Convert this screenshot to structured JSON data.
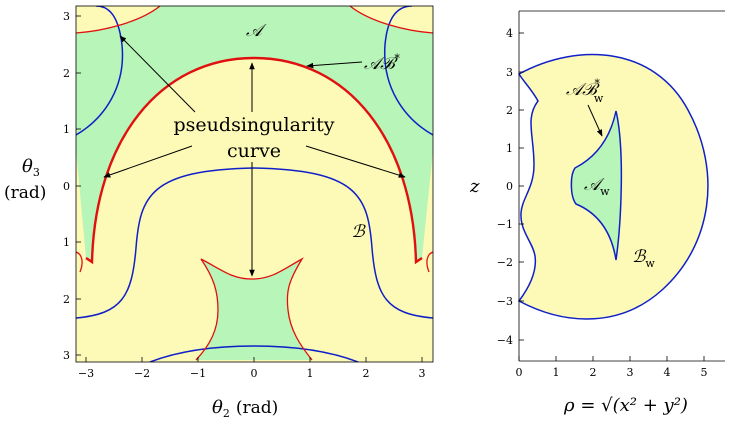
{
  "left_plot": {
    "x_axis_label": "θ2 (rad)",
    "x_axis_label_main": "θ",
    "x_axis_label_sub": "2",
    "x_axis_label_unit": "(rad)",
    "y_axis_label_main": "θ",
    "y_axis_label_sub": "3",
    "y_axis_label_unit": "(rad)",
    "x_ticks": [
      "−3",
      "−2",
      "−1",
      "0",
      "1",
      "2",
      "3"
    ],
    "y_ticks": [
      "3",
      "2",
      "1",
      "0",
      "1",
      "2",
      "3"
    ],
    "region_labels": {
      "a": "𝒜",
      "b": "ℬ",
      "ab_main": "𝒜ℬ",
      "ab_sup": "*"
    },
    "annotation_line1": "pseudsingularity",
    "annotation_line2": "curve"
  },
  "right_plot": {
    "x_axis_label": "ρ = √(x² + y²)",
    "y_axis_label": "z",
    "x_ticks": [
      "0",
      "1",
      "2",
      "3",
      "4",
      "5"
    ],
    "y_ticks": [
      "4",
      "3",
      "2",
      "1",
      "0",
      "−1",
      "−2",
      "−3",
      "−4"
    ],
    "region_labels": {
      "aw_main": "𝒜",
      "aw_sub": "w",
      "bw_main": "ℬ",
      "bw_sub": "w",
      "abw_main": "𝒜ℬ",
      "abw_sub": "w",
      "abw_sup": "*"
    }
  },
  "colors": {
    "region_a_fill": "#b8f5b8",
    "region_b_fill": "#fdf9b6",
    "boundary_blue": "#1020c8",
    "pseudosingularity_red": "#e01010"
  }
}
